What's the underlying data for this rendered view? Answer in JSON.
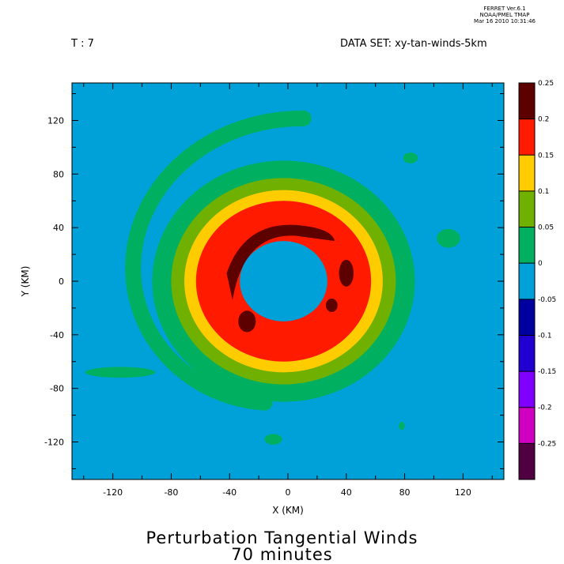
{
  "header": {
    "ferret_line1": "FERRET  Ver.6.1",
    "ferret_line2": "NOAA/PMEL TMAP",
    "ferret_line3": "Mar 16 2010 10:31:46",
    "time_label": "T : 7",
    "dataset_label": "DATA SET: xy-tan-winds-5km"
  },
  "chart_data": {
    "type": "heatmap",
    "title": "Perturbation Tangential Winds",
    "subtitle": "70 minutes",
    "xlabel": "X (KM)",
    "ylabel": "Y (KM)",
    "xlim": [
      -148,
      148
    ],
    "ylim": [
      -148,
      148
    ],
    "x_ticks": [
      -120,
      -80,
      -40,
      0,
      40,
      80,
      120
    ],
    "y_ticks": [
      120,
      80,
      40,
      0,
      -40,
      -80,
      -120
    ],
    "x_tick_labels": [
      "-120",
      "-80",
      "-40",
      "0",
      "40",
      "80",
      "120"
    ],
    "y_tick_labels": [
      "120",
      "80",
      "40",
      "0",
      "-40",
      "-80",
      "-120"
    ],
    "colorbar": {
      "levels": [
        0.25,
        0.2,
        0.15,
        0.1,
        0.05,
        0,
        -0.05,
        -0.1,
        -0.15,
        -0.2,
        -0.25
      ],
      "level_labels": [
        "0.25",
        "0.2",
        "0.15",
        "0.1",
        "0.05",
        "0",
        "-0.05",
        "-0.1",
        "-0.15",
        "-0.2",
        "-0.25"
      ],
      "colors": [
        "#5c0000",
        "#ff1a00",
        "#ffcc00",
        "#6fb000",
        "#00b060",
        "#00a0d8",
        "#0000a0",
        "#2000d0",
        "#8000ff",
        "#d000c0",
        "#500040"
      ]
    },
    "background_value_color": "#00a0d8",
    "annulus": {
      "center": [
        -3,
        0
      ],
      "bands": [
        {
          "range": [
            0,
            0.05
          ],
          "outer_radius_km": 90,
          "inner_radius_km": 30,
          "color": "#00b060"
        },
        {
          "range": [
            0.05,
            0.1
          ],
          "outer_radius_km": 77,
          "inner_radius_km": 26,
          "color": "#6fb000"
        },
        {
          "range": [
            0.1,
            0.15
          ],
          "outer_radius_km": 68,
          "inner_radius_km": 22,
          "color": "#ffcc00"
        },
        {
          "range": [
            0.15,
            0.2
          ],
          "outer_radius_km": 60,
          "inner_radius_km": 26,
          "color": "#ff1a00"
        }
      ]
    },
    "outer_spiral_band_value": "0 to 0.05"
  }
}
